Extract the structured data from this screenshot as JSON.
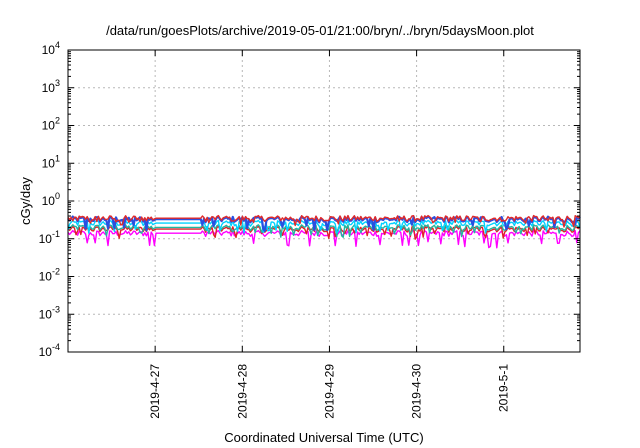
{
  "chart_data": {
    "type": "line",
    "title": "/data/run/goesPlots/archive/2019-05-01/21:00/bryn/../bryn/5daysMoon.plot",
    "xlabel": "Coordinated Universal Time (UTC)",
    "ylabel": "cGy/day",
    "yscale": "log",
    "ylim": [
      0.0001,
      10000
    ],
    "y_ticks": [
      {
        "base": "10",
        "exp": "-4"
      },
      {
        "base": "10",
        "exp": "-3"
      },
      {
        "base": "10",
        "exp": "-2"
      },
      {
        "base": "10",
        "exp": "-1"
      },
      {
        "base": "10",
        "exp": "0"
      },
      {
        "base": "10",
        "exp": "1"
      },
      {
        "base": "10",
        "exp": "2"
      },
      {
        "base": "10",
        "exp": "3"
      },
      {
        "base": "10",
        "exp": "4"
      }
    ],
    "xlim": [
      "2019-04-26 00:00",
      "2019-05-01 21:00"
    ],
    "x_ticks": [
      "2019-4-27",
      "2019-4-28",
      "2019-4-29",
      "2019-4-30",
      "2019-5-1"
    ],
    "grid": true,
    "series": [
      {
        "color": "#ff00ff",
        "level": 0.14,
        "dip_level": 0.07
      },
      {
        "color": "#e0202a",
        "level": 0.18,
        "dip_level": 0.12
      },
      {
        "color": "#23b7a0",
        "level": 0.2,
        "dip_level": 0.13
      },
      {
        "color": "#00d2ff",
        "level": 0.26,
        "dip_level": 0.16
      },
      {
        "color": "#2a4fe0",
        "level": 0.33,
        "dip_level": 0.2
      },
      {
        "color": "#e02a2a",
        "level": 0.35,
        "dip_level": 0.25
      }
    ]
  }
}
